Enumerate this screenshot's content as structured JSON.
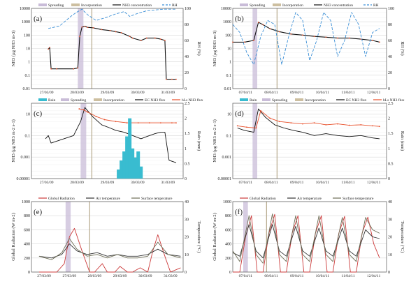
{
  "chart_data": [
    {
      "id": "a",
      "panel_label": "(a)",
      "type": "line",
      "legend": [
        "Spreading",
        "Incorporation",
        "NH3 concentration",
        "RH"
      ],
      "ylabel": "NH3 (µg NH3 m-3)",
      "y2label": "RH (%)",
      "y_scale": "log",
      "ylim": [
        0.01,
        10000
      ],
      "y2lim": [
        0,
        100
      ],
      "yticks": [
        "0.01",
        "0.1",
        "1",
        "10",
        "100",
        "1000",
        "10000"
      ],
      "y2ticks": [
        "0",
        "20",
        "40",
        "60",
        "80",
        "100"
      ],
      "xticks": [
        "27/03/09",
        "28/03/09",
        "29/03/09",
        "30/03/09",
        "31/03/09"
      ],
      "xrange_days": [
        0,
        5.4
      ],
      "spreading": [
        1.65,
        1.85
      ],
      "incorporation": 2.15,
      "series": [
        {
          "name": "NH3 concentration",
          "x": [
            0.6,
            0.65,
            0.7,
            0.9,
            1.5,
            1.65,
            1.72,
            1.8,
            1.9,
            2.0,
            2.2,
            2.5,
            2.8,
            3.0,
            3.2,
            3.5,
            3.6,
            3.9,
            4.1,
            4.4,
            4.6,
            4.75,
            4.8,
            5.0,
            5.15
          ],
          "y": [
            9,
            12,
            0.3,
            0.3,
            0.3,
            0.35,
            80,
            400,
            450,
            380,
            350,
            260,
            220,
            180,
            150,
            80,
            60,
            40,
            60,
            60,
            50,
            40,
            0.05,
            0.05,
            0.05
          ]
        },
        {
          "name": "RH",
          "axis": "right",
          "x": [
            0.6,
            1.0,
            1.4,
            1.6,
            1.8,
            2.0,
            2.3,
            2.6,
            3.0,
            3.3,
            3.5,
            3.8,
            4.1,
            4.4,
            4.7,
            5.0,
            5.15
          ],
          "y": [
            75,
            78,
            90,
            95,
            99,
            92,
            85,
            88,
            93,
            96,
            90,
            94,
            97,
            98,
            99,
            99,
            99
          ]
        }
      ]
    },
    {
      "id": "b",
      "panel_label": "(b)",
      "type": "line",
      "legend": [
        "Spreading",
        "Incorporation",
        "NH3 concentration",
        "RH"
      ],
      "ylabel": "NH3 (µg NH3 m-3)",
      "y2label": "RH (%)",
      "y_scale": "log",
      "ylim": [
        0.01,
        10000
      ],
      "y2lim": [
        0,
        100
      ],
      "yticks": [
        "0.01",
        "0.1",
        "1",
        "10",
        "100",
        "1000",
        "10000"
      ],
      "y2ticks": [
        "0",
        "20",
        "40",
        "60",
        "80",
        "100"
      ],
      "xticks": [
        "07/04/11",
        "08/04/11",
        "09/04/11",
        "10/04/11",
        "11/04/11",
        "12/04/11"
      ],
      "xrange_days": [
        0,
        6.6
      ],
      "spreading": [
        0.85,
        1.05
      ],
      "incorporation": 1.9,
      "series": [
        {
          "name": "NH3 concentration",
          "x": [
            0.0,
            0.5,
            0.9,
            1.1,
            1.3,
            1.6,
            2.0,
            2.5,
            3.0,
            3.5,
            4.0,
            4.5,
            5.0,
            5.5,
            6.0,
            6.3
          ],
          "y": [
            30,
            30,
            40,
            900,
            600,
            300,
            180,
            120,
            100,
            80,
            70,
            60,
            60,
            50,
            40,
            30
          ]
        },
        {
          "name": "RH",
          "axis": "right",
          "x": [
            0.0,
            0.3,
            0.6,
            0.9,
            1.2,
            1.5,
            1.8,
            2.1,
            2.4,
            2.7,
            3.0,
            3.3,
            3.6,
            3.9,
            4.2,
            4.5,
            4.8,
            5.1,
            5.4,
            5.7,
            6.0,
            6.3
          ],
          "y": [
            80,
            70,
            45,
            30,
            65,
            85,
            80,
            30,
            65,
            95,
            85,
            35,
            60,
            95,
            85,
            40,
            60,
            95,
            80,
            40,
            70,
            75
          ]
        }
      ]
    },
    {
      "id": "c",
      "panel_label": "(c)",
      "type": "line",
      "legend": [
        "Rain",
        "Spreading",
        "Incorporation",
        "EC NH3 flux",
        "bLs NH3 flux"
      ],
      "ylabel": "NH3 (µg NH3 m-2 s-1)",
      "y2label": "Rain (mm)",
      "y_scale": "log",
      "ylim": [
        1e-05,
        100
      ],
      "y2lim": [
        0,
        2.5
      ],
      "yticks": [
        "0.00001",
        "0.001",
        "0.1",
        "10"
      ],
      "y2ticks": [
        "0",
        "0.5",
        "1",
        "1.5",
        "2",
        "2.5"
      ],
      "xticks": [
        "27/03/09",
        "28/03/09",
        "29/03/09",
        "30/03/09",
        "31/03/09"
      ],
      "xrange_days": [
        0,
        5.4
      ],
      "spreading": [
        1.75,
        1.95
      ],
      "incorporation": 2.15,
      "series": [
        {
          "name": "EC NH3 flux",
          "x": [
            0.5,
            0.6,
            0.7,
            1.5,
            1.75,
            1.9,
            2.0,
            2.2,
            2.5,
            2.8,
            3.0,
            3.3,
            3.6,
            3.9,
            4.1,
            4.4,
            4.6,
            4.75,
            4.9,
            5.15
          ],
          "y": [
            0.05,
            0.1,
            0.02,
            0.1,
            2,
            40,
            20,
            5,
            1,
            0.5,
            0.3,
            0.2,
            0.1,
            0.05,
            0.08,
            0.15,
            0.2,
            0.2,
            0.0005,
            0.0003
          ]
        },
        {
          "name": "bLs NH3 flux",
          "x": [
            1.7,
            1.85,
            2.0,
            2.3,
            2.6,
            3.0,
            3.4,
            3.8,
            4.2,
            4.6,
            5.0,
            5.15
          ],
          "y": [
            30,
            25,
            15,
            6,
            3,
            2,
            1.5,
            1.5,
            1.5,
            1.5,
            1.5,
            1.5
          ]
        },
        {
          "name": "Rain",
          "axis": "right",
          "x": [
            3.1,
            3.2,
            3.3,
            3.4,
            3.5,
            3.6,
            3.7,
            3.8,
            3.9
          ],
          "y": [
            0.3,
            0.6,
            0.9,
            1.4,
            2.0,
            1.0,
            0.7,
            0.9,
            0.4
          ]
        }
      ]
    },
    {
      "id": "d",
      "panel_label": "(d)",
      "type": "line",
      "legend": [
        "Rain",
        "Spreading",
        "Incorporation",
        "EC NH3 flux",
        "bLs NH3 flux"
      ],
      "ylabel": "NH3 (µg NH3 m-2 s-1)",
      "y2label": "Rain (mm)",
      "y_scale": "log",
      "ylim": [
        1e-05,
        100
      ],
      "y2lim": [
        0,
        2.5
      ],
      "yticks": [
        "0.00001",
        "0.001",
        "0.1",
        "10"
      ],
      "y2ticks": [
        "0",
        "0.5",
        "1",
        "1.5",
        "2",
        "2.5"
      ],
      "xticks": [
        "07/04/11",
        "08/04/11",
        "09/04/11",
        "10/04/11",
        "11/04/11",
        "12/04/11"
      ],
      "xrange_days": [
        0,
        6.6
      ],
      "spreading": [
        0.85,
        1.05
      ],
      "incorporation": 1.9,
      "series": [
        {
          "name": "EC NH3 flux",
          "x": [
            0.2,
            0.5,
            0.9,
            1.1,
            1.4,
            1.8,
            2.2,
            2.6,
            3.0,
            3.5,
            4.0,
            4.5,
            5.0,
            5.5,
            6.0,
            6.3
          ],
          "y": [
            0.5,
            0.3,
            0.2,
            30,
            5,
            1,
            0.5,
            0.3,
            0.2,
            0.1,
            0.15,
            0.1,
            0.08,
            0.1,
            0.06,
            0.05
          ]
        },
        {
          "name": "bLs NH3 flux",
          "x": [
            0.2,
            0.6,
            1.0,
            1.2,
            1.6,
            2.0,
            2.5,
            3.0,
            3.5,
            4.0,
            4.5,
            5.0,
            5.5,
            6.0,
            6.3
          ],
          "y": [
            0.8,
            0.6,
            0.5,
            20,
            4,
            2,
            1.5,
            1.2,
            1.5,
            1.0,
            1.2,
            0.9,
            1.0,
            0.8,
            0.7
          ]
        }
      ]
    },
    {
      "id": "e",
      "panel_label": "(e)",
      "type": "line",
      "legend": [
        "Global Radiation",
        "Air temperature",
        "Surface temperature"
      ],
      "ylabel": "Global Radiation (W m-2)",
      "y2label": "Temperature (°C)",
      "ylim": [
        0,
        1000
      ],
      "y2lim": [
        0,
        40
      ],
      "yticks": [
        "0",
        "200",
        "400",
        "600",
        "800",
        "1000"
      ],
      "y2ticks": [
        "0",
        "10",
        "20",
        "30",
        "40"
      ],
      "xticks": [
        "27/03/09",
        "27/03/09",
        "28/03/09",
        "29/03/09",
        "30/03/09",
        "31/03/09"
      ],
      "xrange_days": [
        0,
        6.0
      ],
      "spreading": [
        1.35,
        1.55
      ],
      "incorporation": 2.3,
      "series": [
        {
          "name": "Global Radiation",
          "x": [
            0.3,
            1.0,
            1.3,
            1.5,
            1.7,
            2.0,
            2.3,
            2.5,
            2.8,
            3.0,
            3.3,
            3.5,
            3.8,
            4.0,
            4.3,
            4.6,
            4.8,
            5.0,
            5.3,
            5.5,
            5.9
          ],
          "y": [
            0,
            0,
            120,
            500,
            620,
            300,
            0,
            0,
            120,
            0,
            0,
            80,
            0,
            0,
            60,
            0,
            300,
            530,
            200,
            0,
            60
          ]
        },
        {
          "name": "Air temperature",
          "axis": "right",
          "x": [
            0.3,
            0.8,
            1.2,
            1.5,
            1.8,
            2.2,
            2.6,
            3.0,
            3.4,
            3.8,
            4.2,
            4.6,
            5.0,
            5.4,
            5.9
          ],
          "y": [
            9,
            8,
            10,
            16,
            12,
            10,
            11,
            9,
            10,
            9,
            9,
            10,
            13,
            10,
            9
          ]
        },
        {
          "name": "Surface temperature",
          "axis": "right",
          "x": [
            0.3,
            0.8,
            1.2,
            1.5,
            1.8,
            2.2,
            2.6,
            3.0,
            3.4,
            3.8,
            4.2,
            4.6,
            5.0,
            5.4,
            5.9
          ],
          "y": [
            9,
            7,
            11,
            19,
            13,
            9,
            10,
            8,
            10,
            8,
            8,
            9,
            17,
            10,
            8
          ]
        }
      ]
    },
    {
      "id": "f",
      "panel_label": "(f)",
      "type": "line",
      "legend": [
        "Global Radiation",
        "Air temperature",
        "Surface temperature"
      ],
      "ylabel": "Global Radiation (W m-2)",
      "y2label": "Temperature (°C)",
      "ylim": [
        0,
        1000
      ],
      "y2lim": [
        0,
        40
      ],
      "yticks": [
        "0",
        "200",
        "400",
        "600",
        "800",
        "1000"
      ],
      "y2ticks": [
        "0",
        "10",
        "20",
        "30",
        "40"
      ],
      "xticks": [
        "07/04/11",
        "08/04/11",
        "09/04/11",
        "10/04/11",
        "11/04/11",
        "12/04/11"
      ],
      "xrange_days": [
        0,
        6.6
      ],
      "spreading": [
        0.45,
        0.65
      ],
      "incorporation": 1.45,
      "series": [
        {
          "name": "Global Radiation",
          "x": [
            0.0,
            0.3,
            0.55,
            0.8,
            1.05,
            1.3,
            1.55,
            1.8,
            2.05,
            2.3,
            2.55,
            2.8,
            3.05,
            3.3,
            3.55,
            3.8,
            4.05,
            4.3,
            4.55,
            4.8,
            5.05,
            5.3,
            5.55,
            5.8,
            6.05,
            6.3
          ],
          "y": [
            0,
            0,
            500,
            800,
            0,
            0,
            550,
            820,
            0,
            0,
            550,
            800,
            0,
            0,
            550,
            800,
            0,
            0,
            550,
            790,
            0,
            0,
            550,
            780,
            400,
            200
          ]
        },
        {
          "name": "Air temperature",
          "axis": "right",
          "x": [
            0.0,
            0.3,
            0.7,
            1.0,
            1.3,
            1.7,
            2.0,
            2.3,
            2.7,
            3.0,
            3.3,
            3.7,
            4.0,
            4.3,
            4.7,
            5.0,
            5.3,
            5.7,
            6.0,
            6.3
          ],
          "y": [
            11,
            9,
            27,
            12,
            8,
            27,
            12,
            9,
            26,
            12,
            9,
            25,
            12,
            9,
            25,
            12,
            9,
            24,
            20,
            19
          ]
        },
        {
          "name": "Surface temperature",
          "axis": "right",
          "x": [
            0.0,
            0.3,
            0.7,
            1.0,
            1.3,
            1.7,
            2.0,
            2.3,
            2.7,
            3.0,
            3.3,
            3.7,
            4.0,
            4.3,
            4.7,
            5.0,
            5.3,
            5.7,
            6.0,
            6.3
          ],
          "y": [
            12,
            6,
            32,
            10,
            5,
            33,
            10,
            6,
            32,
            10,
            6,
            32,
            10,
            6,
            31,
            10,
            6,
            31,
            24,
            22
          ]
        }
      ]
    }
  ]
}
